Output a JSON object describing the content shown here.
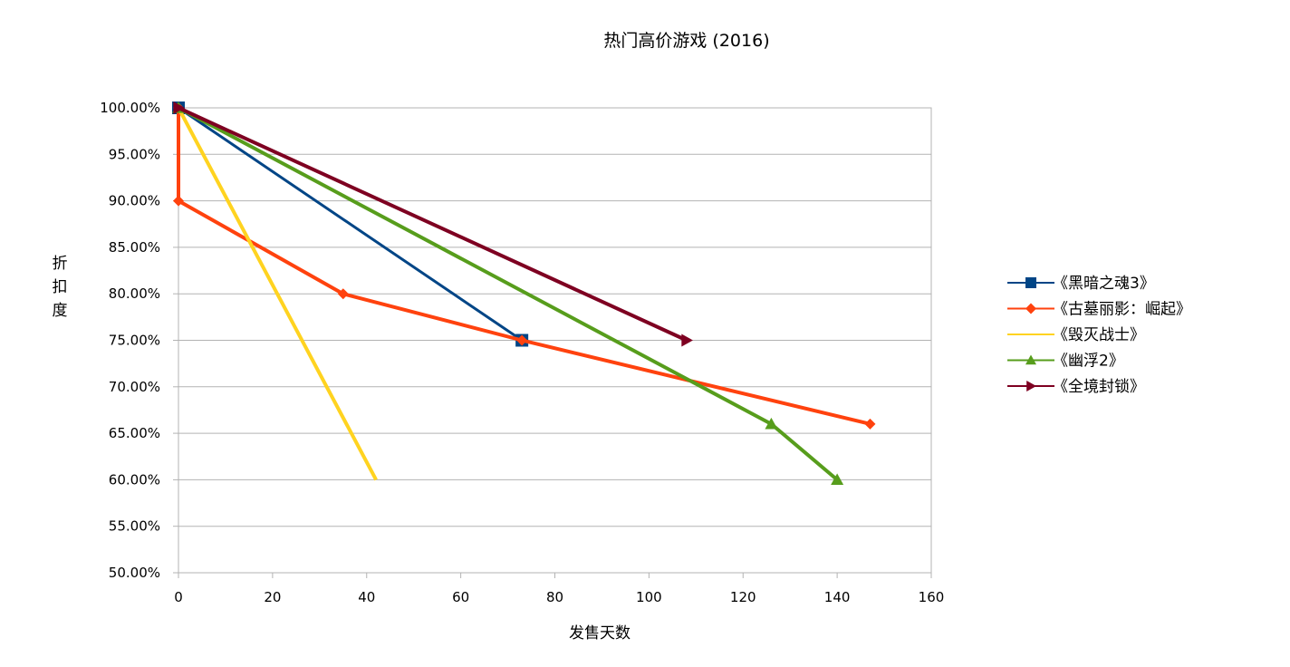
{
  "chart_data": {
    "type": "line",
    "title": "热门高价游戏 (2016)",
    "xlabel": "发售天数",
    "ylabel": "折扣度",
    "xlim": [
      0,
      160
    ],
    "ylim": [
      50,
      100
    ],
    "xticks": [
      "0",
      "20",
      "40",
      "60",
      "80",
      "100",
      "120",
      "140",
      "160"
    ],
    "yticks": [
      "50.00%",
      "55.00%",
      "60.00%",
      "65.00%",
      "70.00%",
      "75.00%",
      "80.00%",
      "85.00%",
      "90.00%",
      "95.00%",
      "100.00%"
    ],
    "grid": true,
    "legend_position": "right",
    "series": [
      {
        "name": "《黑暗之魂3》",
        "color": "#004586",
        "marker": "square",
        "x": [
          0,
          73
        ],
        "y": [
          100,
          75
        ]
      },
      {
        "name": "《古墓丽影：崛起》",
        "color": "#ff420e",
        "marker": "diamond",
        "x": [
          0,
          0,
          35,
          73,
          147
        ],
        "y": [
          100,
          90,
          80,
          75,
          66
        ]
      },
      {
        "name": "《毁灭战士》",
        "color": "#ffd320",
        "marker": "none",
        "x": [
          0,
          42
        ],
        "y": [
          100,
          60
        ]
      },
      {
        "name": "《幽浮2》",
        "color": "#579d1c",
        "marker": "triangle-up",
        "x": [
          0,
          126,
          140
        ],
        "y": [
          100,
          66,
          60
        ]
      },
      {
        "name": "《全境封锁》",
        "color": "#7e0021",
        "marker": "triangle-right",
        "x": [
          0,
          108
        ],
        "y": [
          100,
          75
        ]
      }
    ]
  }
}
